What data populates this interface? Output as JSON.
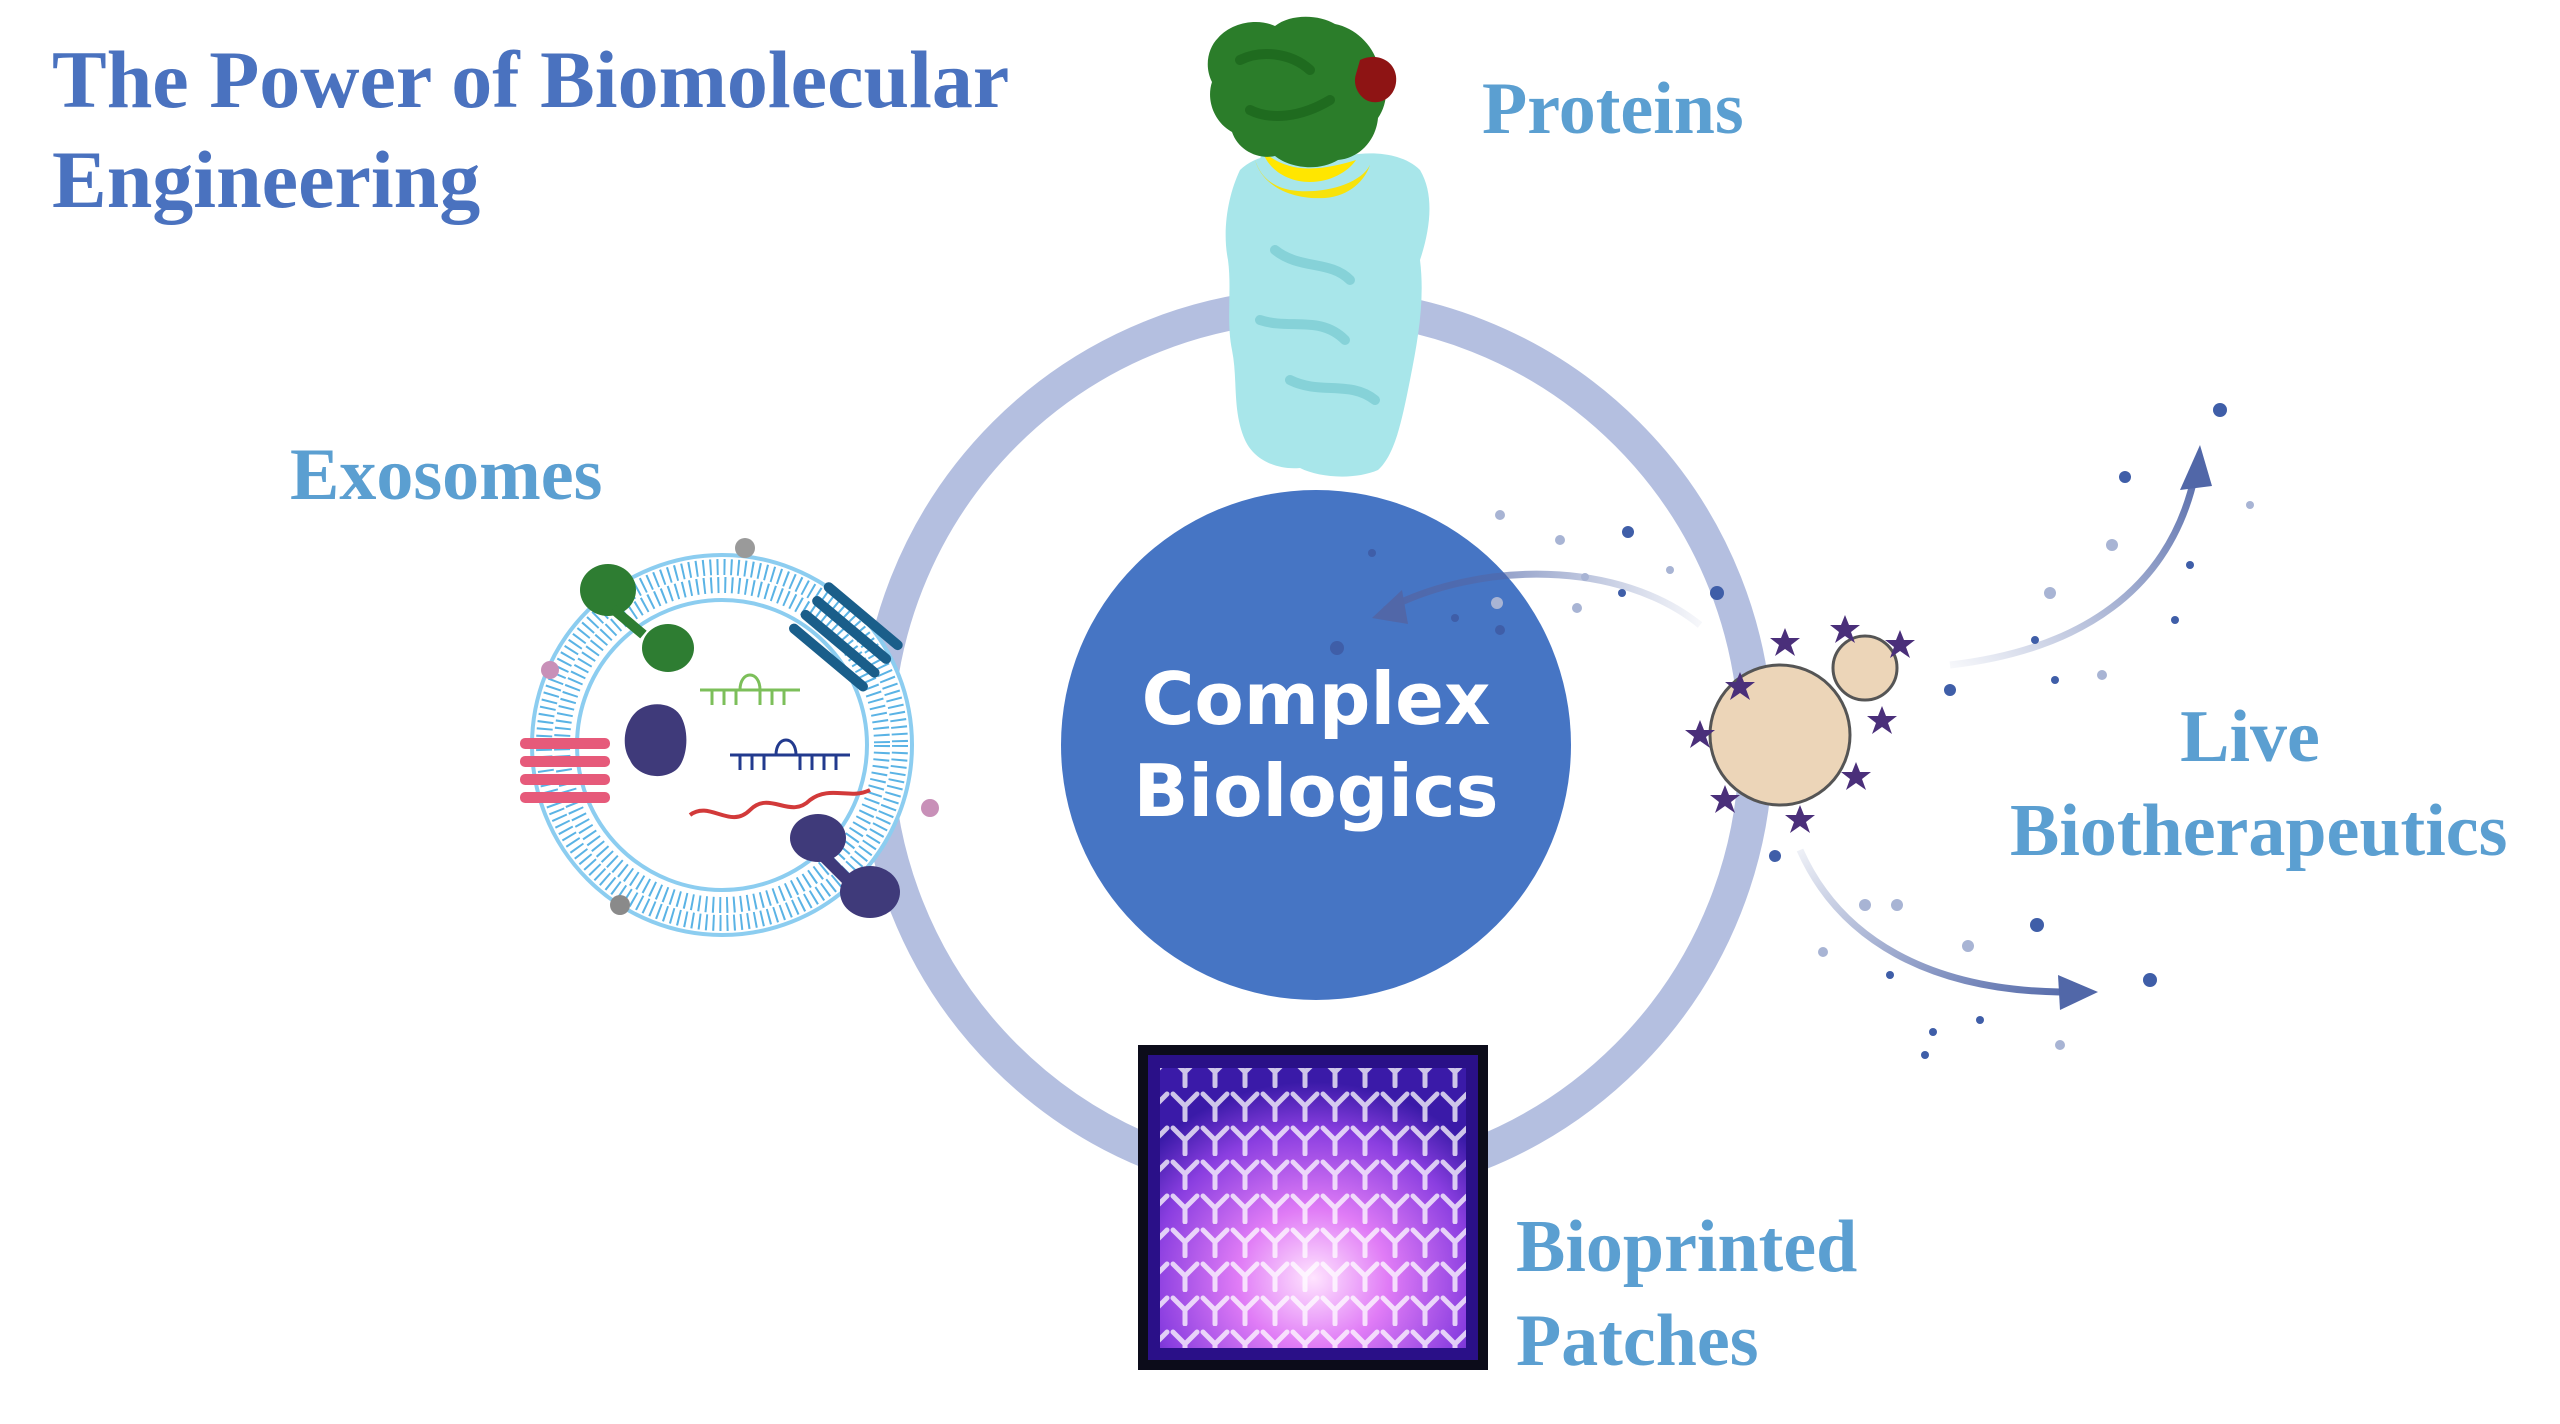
{
  "title": {
    "line1": "The Power of Biomolecular",
    "line2": "Engineering"
  },
  "center": {
    "line1": "Complex",
    "line2": "Biologics"
  },
  "labels": {
    "proteins": "Proteins",
    "exosomes": "Exosomes",
    "live_line1": "Live",
    "live_line2": "Biotherapeutics",
    "bioprinted_line1": "Bioprinted",
    "bioprinted_line2": "Patches"
  },
  "colors": {
    "title": "#4a72bf",
    "labels": "#5b9fd1",
    "ring": "#b4bfe0",
    "center_circle": "#4675c4",
    "arrows": "#5167a8",
    "cell": "#ecd5b8"
  },
  "icons": [
    "protein-structure-icon",
    "exosome-icon",
    "yeast-cell-icon",
    "bioprinted-patch-icon"
  ]
}
